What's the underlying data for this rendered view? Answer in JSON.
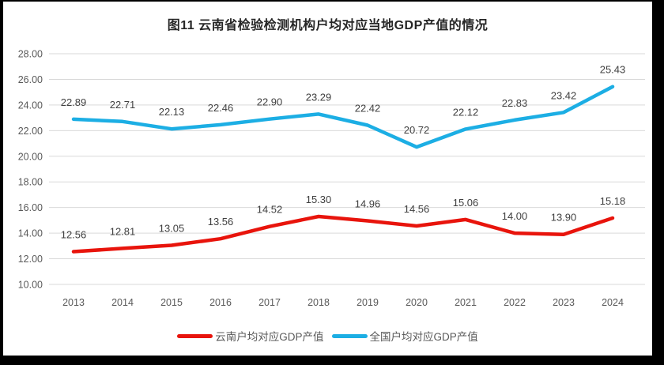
{
  "frame": {
    "border_color": "#000000",
    "background_color": "#ffffff"
  },
  "title": "图11 云南省检验检测机构户均对应当地GDP产值的情况",
  "chart_data": {
    "type": "line",
    "title": "图11 云南省检验检测机构户均对应当地GDP产值的情况",
    "categories": [
      "2013",
      "2014",
      "2015",
      "2016",
      "2017",
      "2018",
      "2019",
      "2020",
      "2021",
      "2022",
      "2023",
      "2024"
    ],
    "series": [
      {
        "name": "云南户均对应GDP产值",
        "color": "#e8140c",
        "values": [
          12.56,
          12.81,
          13.05,
          13.56,
          14.52,
          15.3,
          14.96,
          14.56,
          15.06,
          14.0,
          13.9,
          15.18
        ]
      },
      {
        "name": "全国户均对应GDP产值",
        "color": "#1caee4",
        "values": [
          22.89,
          22.71,
          22.13,
          22.46,
          22.9,
          23.29,
          22.42,
          20.72,
          22.12,
          22.83,
          23.42,
          25.43
        ]
      }
    ],
    "xlabel": "",
    "ylabel": "",
    "ylim": [
      10,
      28
    ],
    "ytick_step": 2,
    "ytick_decimals": 2,
    "grid": "horizontal-only",
    "gridline_color": "#d9d9d9",
    "tick_label_color": "#595959",
    "data_labels": true,
    "data_label_decimals": 2,
    "data_label_color": "#404040",
    "legend_position": "bottom"
  },
  "legend": {
    "items": [
      {
        "label": "云南户均对应GDP产值",
        "color": "#e8140c"
      },
      {
        "label": "全国户均对应GDP产值",
        "color": "#1caee4"
      }
    ]
  }
}
